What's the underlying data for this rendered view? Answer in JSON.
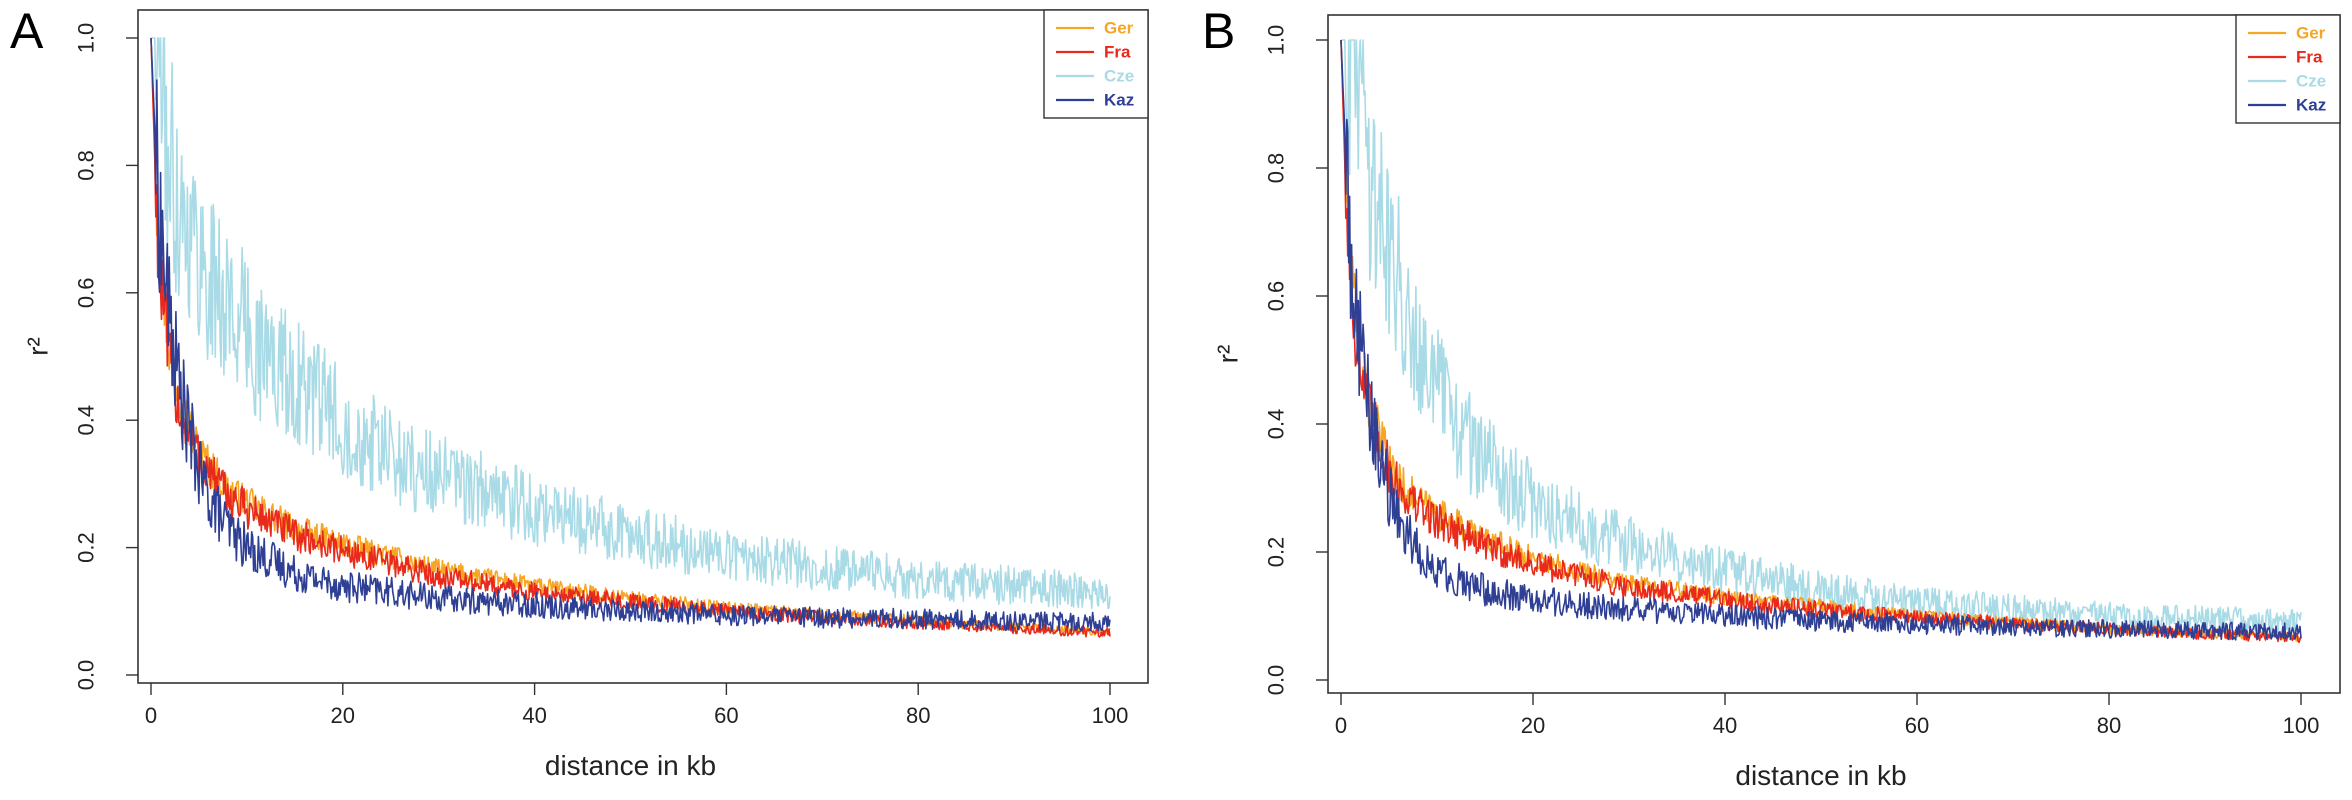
{
  "colors": {
    "Ger": "#f5a623",
    "Fra": "#e8291c",
    "Cze": "#a9dbe6",
    "Kaz": "#2e3f94"
  },
  "chart_data": [
    {
      "type": "line",
      "panel_label": "A",
      "xlabel": "distance in kb",
      "ylabel": "r²",
      "xlim": [
        0,
        100
      ],
      "ylim": [
        0,
        1
      ],
      "xticks": [
        "0",
        "20",
        "40",
        "60",
        "80",
        "100"
      ],
      "yticks": [
        "0.0",
        "0.2",
        "0.4",
        "0.6",
        "0.8",
        "1.0"
      ],
      "grid": false,
      "legend_position": "top-right",
      "series": [
        {
          "name": "Ger",
          "color": "#f5a623",
          "x": [
            0,
            0.5,
            1,
            2,
            3,
            4,
            5,
            6,
            8,
            10,
            15,
            20,
            30,
            40,
            50,
            60,
            70,
            80,
            90,
            100
          ],
          "y": [
            1.0,
            0.78,
            0.65,
            0.5,
            0.44,
            0.39,
            0.35,
            0.33,
            0.29,
            0.27,
            0.23,
            0.205,
            0.165,
            0.14,
            0.12,
            0.105,
            0.095,
            0.085,
            0.075,
            0.068
          ]
        },
        {
          "name": "Fra",
          "color": "#e8291c",
          "x": [
            0,
            0.5,
            1,
            2,
            3,
            4,
            5,
            6,
            8,
            10,
            15,
            20,
            30,
            40,
            50,
            60,
            70,
            80,
            90,
            100
          ],
          "y": [
            1.0,
            0.76,
            0.62,
            0.48,
            0.42,
            0.38,
            0.34,
            0.32,
            0.28,
            0.26,
            0.22,
            0.195,
            0.155,
            0.13,
            0.115,
            0.1,
            0.09,
            0.082,
            0.074,
            0.066
          ]
        },
        {
          "name": "Cze",
          "color": "#a9dbe6",
          "x": [
            0,
            1,
            1.5,
            2,
            3,
            4,
            5,
            6,
            8,
            10,
            12,
            15,
            20,
            25,
            30,
            40,
            50,
            60,
            70,
            80,
            90,
            100
          ],
          "y": [
            1.0,
            1.0,
            0.84,
            0.8,
            0.74,
            0.7,
            0.66,
            0.62,
            0.58,
            0.54,
            0.5,
            0.46,
            0.4,
            0.34,
            0.31,
            0.26,
            0.22,
            0.19,
            0.17,
            0.15,
            0.14,
            0.13
          ]
        },
        {
          "name": "Kaz",
          "color": "#2e3f94",
          "x": [
            0,
            0.5,
            1,
            2,
            3,
            4,
            5,
            6,
            8,
            10,
            15,
            20,
            30,
            40,
            50,
            60,
            70,
            80,
            90,
            100
          ],
          "y": [
            1.0,
            0.82,
            0.7,
            0.55,
            0.45,
            0.38,
            0.32,
            0.28,
            0.23,
            0.2,
            0.16,
            0.14,
            0.12,
            0.11,
            0.1,
            0.095,
            0.09,
            0.088,
            0.085,
            0.083
          ]
        }
      ]
    },
    {
      "type": "line",
      "panel_label": "B",
      "xlabel": "distance in kb",
      "ylabel": "r²",
      "xlim": [
        0,
        100
      ],
      "ylim": [
        0,
        1
      ],
      "xticks": [
        "0",
        "20",
        "40",
        "60",
        "80",
        "100"
      ],
      "yticks": [
        "0.0",
        "0.2",
        "0.4",
        "0.6",
        "0.8",
        "1.0"
      ],
      "grid": false,
      "legend_position": "top-right",
      "series": [
        {
          "name": "Ger",
          "color": "#f5a623",
          "x": [
            0,
            0.5,
            1,
            2,
            3,
            4,
            5,
            6,
            8,
            10,
            15,
            20,
            30,
            40,
            50,
            60,
            70,
            80,
            90,
            100
          ],
          "y": [
            1.0,
            0.78,
            0.64,
            0.5,
            0.43,
            0.38,
            0.34,
            0.31,
            0.28,
            0.26,
            0.22,
            0.19,
            0.15,
            0.13,
            0.115,
            0.1,
            0.09,
            0.08,
            0.073,
            0.067
          ]
        },
        {
          "name": "Fra",
          "color": "#e8291c",
          "x": [
            0,
            0.5,
            1,
            2,
            3,
            4,
            5,
            6,
            8,
            10,
            15,
            20,
            30,
            40,
            50,
            60,
            70,
            80,
            90,
            100
          ],
          "y": [
            1.0,
            0.76,
            0.62,
            0.48,
            0.42,
            0.37,
            0.33,
            0.3,
            0.27,
            0.25,
            0.21,
            0.18,
            0.145,
            0.125,
            0.11,
            0.097,
            0.088,
            0.08,
            0.072,
            0.066
          ]
        },
        {
          "name": "Cze",
          "color": "#a9dbe6",
          "x": [
            0,
            1,
            2,
            2.5,
            3,
            4,
            5,
            6,
            8,
            10,
            12,
            15,
            20,
            25,
            30,
            40,
            50,
            60,
            70,
            80,
            90,
            100
          ],
          "y": [
            1.0,
            1.0,
            1.0,
            0.86,
            0.8,
            0.74,
            0.68,
            0.62,
            0.54,
            0.46,
            0.4,
            0.34,
            0.28,
            0.24,
            0.21,
            0.17,
            0.14,
            0.12,
            0.11,
            0.1,
            0.095,
            0.09
          ]
        },
        {
          "name": "Kaz",
          "color": "#2e3f94",
          "x": [
            0,
            0.5,
            1,
            2,
            3,
            4,
            5,
            6,
            8,
            10,
            15,
            20,
            30,
            40,
            50,
            60,
            70,
            80,
            90,
            100
          ],
          "y": [
            1.0,
            0.82,
            0.68,
            0.52,
            0.42,
            0.35,
            0.29,
            0.25,
            0.2,
            0.17,
            0.14,
            0.125,
            0.11,
            0.1,
            0.092,
            0.087,
            0.083,
            0.08,
            0.077,
            0.075
          ]
        }
      ]
    }
  ]
}
